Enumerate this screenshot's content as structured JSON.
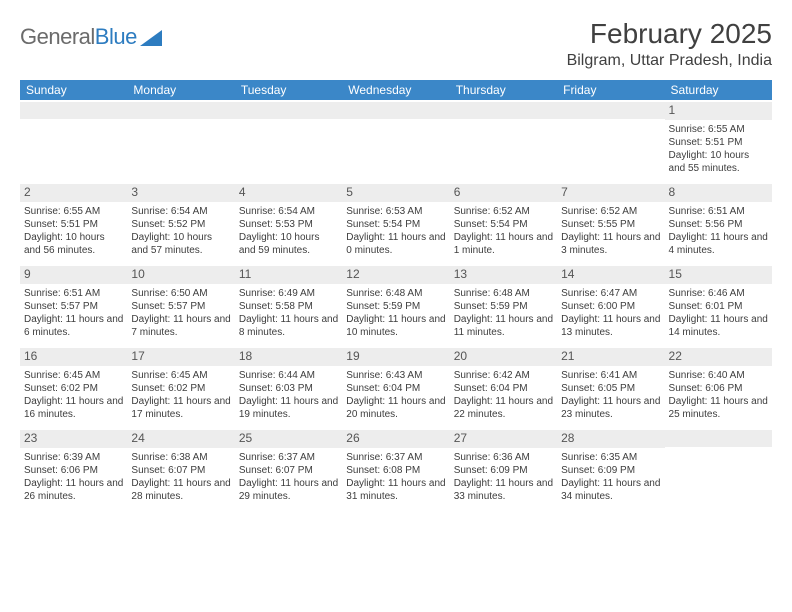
{
  "brand": {
    "part1": "General",
    "part2": "Blue"
  },
  "title": "February 2025",
  "location": "Bilgram, Uttar Pradesh, India",
  "colors": {
    "header_bg": "#3b87c8",
    "header_text": "#ffffff",
    "daynum_bg": "#ededed",
    "body_text": "#3d3d3d",
    "brand_gray": "#6b6b6b",
    "brand_blue": "#2d7cc0",
    "page_bg": "#ffffff"
  },
  "dow": [
    "Sunday",
    "Monday",
    "Tuesday",
    "Wednesday",
    "Thursday",
    "Friday",
    "Saturday"
  ],
  "weeks": [
    [
      {
        "n": "",
        "lines": []
      },
      {
        "n": "",
        "lines": []
      },
      {
        "n": "",
        "lines": []
      },
      {
        "n": "",
        "lines": []
      },
      {
        "n": "",
        "lines": []
      },
      {
        "n": "",
        "lines": []
      },
      {
        "n": "1",
        "lines": [
          "Sunrise: 6:55 AM",
          "Sunset: 5:51 PM",
          "Daylight: 10 hours and 55 minutes."
        ]
      }
    ],
    [
      {
        "n": "2",
        "lines": [
          "Sunrise: 6:55 AM",
          "Sunset: 5:51 PM",
          "Daylight: 10 hours and 56 minutes."
        ]
      },
      {
        "n": "3",
        "lines": [
          "Sunrise: 6:54 AM",
          "Sunset: 5:52 PM",
          "Daylight: 10 hours and 57 minutes."
        ]
      },
      {
        "n": "4",
        "lines": [
          "Sunrise: 6:54 AM",
          "Sunset: 5:53 PM",
          "Daylight: 10 hours and 59 minutes."
        ]
      },
      {
        "n": "5",
        "lines": [
          "Sunrise: 6:53 AM",
          "Sunset: 5:54 PM",
          "Daylight: 11 hours and 0 minutes."
        ]
      },
      {
        "n": "6",
        "lines": [
          "Sunrise: 6:52 AM",
          "Sunset: 5:54 PM",
          "Daylight: 11 hours and 1 minute."
        ]
      },
      {
        "n": "7",
        "lines": [
          "Sunrise: 6:52 AM",
          "Sunset: 5:55 PM",
          "Daylight: 11 hours and 3 minutes."
        ]
      },
      {
        "n": "8",
        "lines": [
          "Sunrise: 6:51 AM",
          "Sunset: 5:56 PM",
          "Daylight: 11 hours and 4 minutes."
        ]
      }
    ],
    [
      {
        "n": "9",
        "lines": [
          "Sunrise: 6:51 AM",
          "Sunset: 5:57 PM",
          "Daylight: 11 hours and 6 minutes."
        ]
      },
      {
        "n": "10",
        "lines": [
          "Sunrise: 6:50 AM",
          "Sunset: 5:57 PM",
          "Daylight: 11 hours and 7 minutes."
        ]
      },
      {
        "n": "11",
        "lines": [
          "Sunrise: 6:49 AM",
          "Sunset: 5:58 PM",
          "Daylight: 11 hours and 8 minutes."
        ]
      },
      {
        "n": "12",
        "lines": [
          "Sunrise: 6:48 AM",
          "Sunset: 5:59 PM",
          "Daylight: 11 hours and 10 minutes."
        ]
      },
      {
        "n": "13",
        "lines": [
          "Sunrise: 6:48 AM",
          "Sunset: 5:59 PM",
          "Daylight: 11 hours and 11 minutes."
        ]
      },
      {
        "n": "14",
        "lines": [
          "Sunrise: 6:47 AM",
          "Sunset: 6:00 PM",
          "Daylight: 11 hours and 13 minutes."
        ]
      },
      {
        "n": "15",
        "lines": [
          "Sunrise: 6:46 AM",
          "Sunset: 6:01 PM",
          "Daylight: 11 hours and 14 minutes."
        ]
      }
    ],
    [
      {
        "n": "16",
        "lines": [
          "Sunrise: 6:45 AM",
          "Sunset: 6:02 PM",
          "Daylight: 11 hours and 16 minutes."
        ]
      },
      {
        "n": "17",
        "lines": [
          "Sunrise: 6:45 AM",
          "Sunset: 6:02 PM",
          "Daylight: 11 hours and 17 minutes."
        ]
      },
      {
        "n": "18",
        "lines": [
          "Sunrise: 6:44 AM",
          "Sunset: 6:03 PM",
          "Daylight: 11 hours and 19 minutes."
        ]
      },
      {
        "n": "19",
        "lines": [
          "Sunrise: 6:43 AM",
          "Sunset: 6:04 PM",
          "Daylight: 11 hours and 20 minutes."
        ]
      },
      {
        "n": "20",
        "lines": [
          "Sunrise: 6:42 AM",
          "Sunset: 6:04 PM",
          "Daylight: 11 hours and 22 minutes."
        ]
      },
      {
        "n": "21",
        "lines": [
          "Sunrise: 6:41 AM",
          "Sunset: 6:05 PM",
          "Daylight: 11 hours and 23 minutes."
        ]
      },
      {
        "n": "22",
        "lines": [
          "Sunrise: 6:40 AM",
          "Sunset: 6:06 PM",
          "Daylight: 11 hours and 25 minutes."
        ]
      }
    ],
    [
      {
        "n": "23",
        "lines": [
          "Sunrise: 6:39 AM",
          "Sunset: 6:06 PM",
          "Daylight: 11 hours and 26 minutes."
        ]
      },
      {
        "n": "24",
        "lines": [
          "Sunrise: 6:38 AM",
          "Sunset: 6:07 PM",
          "Daylight: 11 hours and 28 minutes."
        ]
      },
      {
        "n": "25",
        "lines": [
          "Sunrise: 6:37 AM",
          "Sunset: 6:07 PM",
          "Daylight: 11 hours and 29 minutes."
        ]
      },
      {
        "n": "26",
        "lines": [
          "Sunrise: 6:37 AM",
          "Sunset: 6:08 PM",
          "Daylight: 11 hours and 31 minutes."
        ]
      },
      {
        "n": "27",
        "lines": [
          "Sunrise: 6:36 AM",
          "Sunset: 6:09 PM",
          "Daylight: 11 hours and 33 minutes."
        ]
      },
      {
        "n": "28",
        "lines": [
          "Sunrise: 6:35 AM",
          "Sunset: 6:09 PM",
          "Daylight: 11 hours and 34 minutes."
        ]
      },
      {
        "n": "",
        "lines": []
      }
    ]
  ]
}
